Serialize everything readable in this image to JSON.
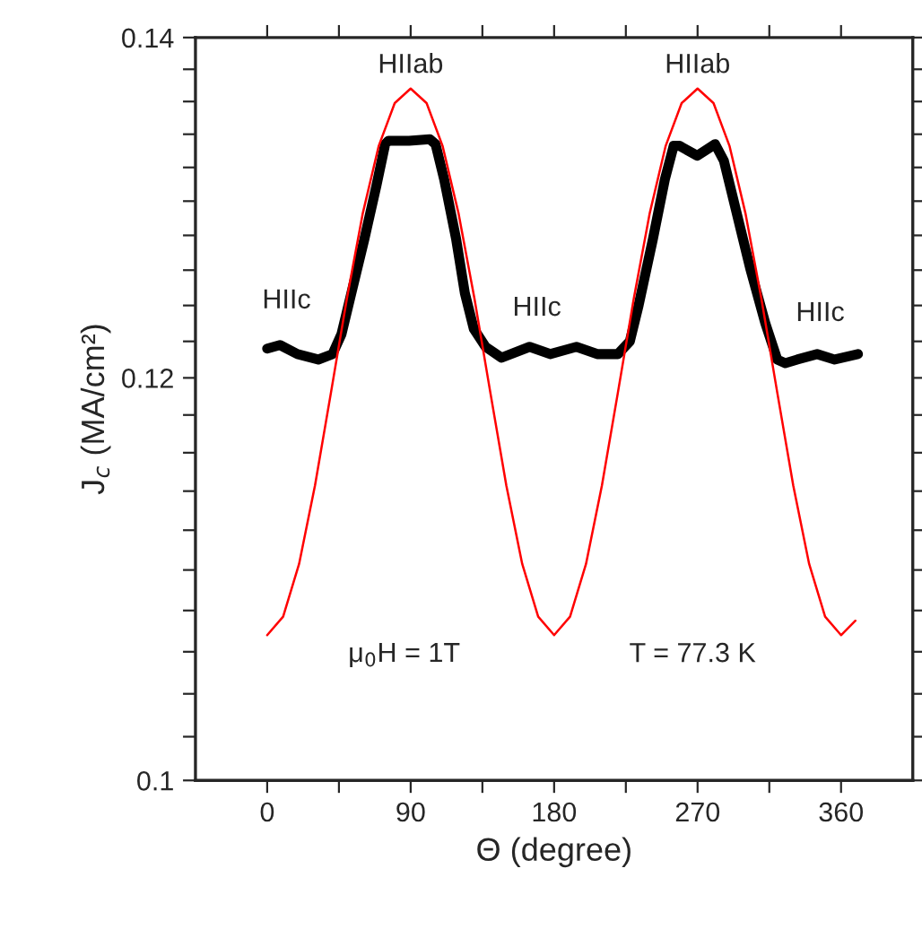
{
  "chart_data": {
    "type": "line",
    "xlabel": "Θ (degree)",
    "ylabel": "J$_{c}$ (MA/cm²)",
    "log": "y",
    "xlim": [
      -45,
      405
    ],
    "xticks": [
      0,
      {
        "value": 45,
        "label": null
      },
      90,
      {
        "value": 135,
        "label": null
      },
      180,
      {
        "value": 225,
        "label": null
      },
      270,
      {
        "value": 315,
        "label": null
      },
      360
    ],
    "ylim": [
      0.1,
      0.14
    ],
    "yticks": [
      0.1,
      {
        "value": 0.102,
        "label": null
      },
      {
        "value": 0.104,
        "label": null
      },
      {
        "value": 0.106,
        "label": null
      },
      {
        "value": 0.108,
        "label": null
      },
      {
        "value": 0.11,
        "label": null
      },
      {
        "value": 0.112,
        "label": null
      },
      {
        "value": 0.114,
        "label": null
      },
      {
        "value": 0.116,
        "label": null
      },
      {
        "value": 0.118,
        "label": null
      },
      0.12,
      {
        "value": 0.122,
        "label": null
      },
      {
        "value": 0.124,
        "label": null
      },
      {
        "value": 0.126,
        "label": null
      },
      {
        "value": 0.128,
        "label": null
      },
      {
        "value": 0.13,
        "label": null
      },
      {
        "value": 0.132,
        "label": null
      },
      {
        "value": 0.134,
        "label": null
      },
      {
        "value": 0.136,
        "label": null
      },
      {
        "value": 0.138,
        "label": null
      },
      0.14
    ],
    "grid": false,
    "legend": false,
    "marker": "none",
    "line_style": "solid",
    "series": [
      {
        "color": "#000000",
        "x": [
          0,
          8,
          19,
          32,
          41,
          46.6,
          52,
          61,
          68.5,
          74,
          76,
          89,
          102,
          105.6,
          111,
          118.5,
          124,
          129.6,
          137,
          147,
          164.6,
          177.5,
          194,
          207,
          220,
          227.5,
          233,
          242,
          249.5,
          255,
          258.7,
          269.8,
          281,
          286.5,
          294,
          303,
          312.5,
          320,
          325,
          332.5,
          345,
          356,
          370.6
        ],
        "values": [
          0.1216,
          0.1218,
          0.1213,
          0.121,
          0.1213,
          0.1224,
          0.1244,
          0.1278,
          0.1309,
          0.1334,
          0.1336,
          0.1336,
          0.1337,
          0.1334,
          0.1313,
          0.1278,
          0.1247,
          0.1227,
          0.1217,
          0.1211,
          0.1217,
          0.1213,
          0.1217,
          0.1213,
          0.1213,
          0.122,
          0.124,
          0.1278,
          0.1313,
          0.1333,
          0.1333,
          0.1327,
          0.1334,
          0.1324,
          0.1295,
          0.1261,
          0.123,
          0.121,
          0.1208,
          0.121,
          0.1213,
          0.121,
          0.1213
        ]
      },
      {
        "color": "#ff0000",
        "x": [
          0,
          10,
          20,
          30,
          40,
          50,
          60,
          70,
          80,
          90,
          100,
          110,
          120,
          130,
          140,
          150,
          160,
          170,
          180,
          190,
          200,
          210,
          220,
          230,
          240,
          250,
          260,
          270,
          280,
          290,
          300,
          310,
          320,
          330,
          340,
          350,
          360,
          369
        ],
        "values": [
          0.1068,
          0.1077,
          0.1103,
          0.1143,
          0.1192,
          0.1244,
          0.1293,
          0.1333,
          0.1359,
          0.1368,
          0.1359,
          0.1333,
          0.1293,
          0.1244,
          0.1192,
          0.1143,
          0.1103,
          0.1077,
          0.1068,
          0.1077,
          0.1103,
          0.1143,
          0.1192,
          0.1244,
          0.1293,
          0.1333,
          0.1359,
          0.1368,
          0.1359,
          0.1333,
          0.1293,
          0.1244,
          0.1192,
          0.1143,
          0.1103,
          0.1077,
          0.1068,
          0.1075
        ]
      }
    ],
    "annotations": [
      "HIIab",
      "HIIab",
      "HIIc",
      "HIIc",
      "HIIc",
      "μ$_{0}$H = 1T",
      "T = 77.3 K"
    ]
  }
}
